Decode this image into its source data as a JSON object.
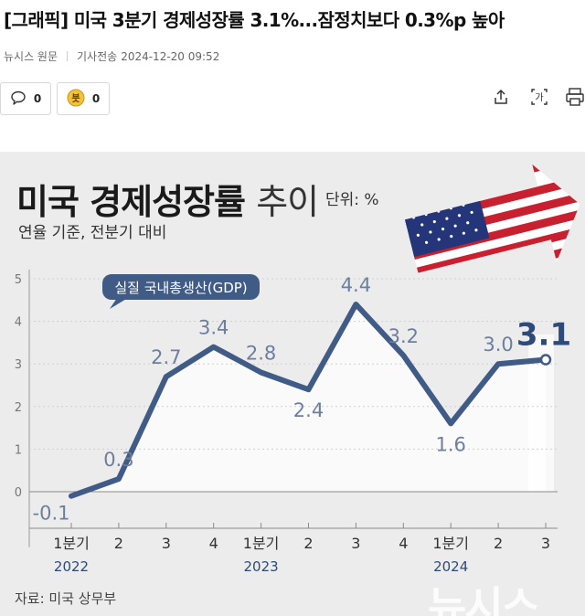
{
  "article": {
    "headline": "[그래픽] 미국 3분기 경제성장률 3.1%...잠정치보다 0.3%p 높아",
    "source": "뉴시스 원문",
    "timestamp_label": "기사전송",
    "timestamp": "2024-12-20 09:52"
  },
  "reactions": {
    "comment_count": "0",
    "reaction_count": "0",
    "reaction_icon_char": "븟"
  },
  "toolbar": {
    "icons": [
      "share-icon",
      "translate-icon",
      "print-icon"
    ],
    "translate_glyph": "가"
  },
  "graphic": {
    "title_main": "미국 경제성장률",
    "title_suffix": "추이",
    "unit": "단위: %",
    "subtitle": "연율 기준, 전분기 대비",
    "source_note": "자료: 미국 상무부",
    "watermark": "뉴시스"
  },
  "chart_data": {
    "type": "line",
    "series": [
      {
        "name": "실질 국내총생산(GDP)",
        "values": [
          -0.1,
          0.3,
          2.7,
          3.4,
          2.8,
          2.4,
          4.4,
          3.2,
          1.6,
          3.0,
          3.1
        ]
      }
    ],
    "data_labels": [
      "-0.1",
      "0.3",
      "2.7",
      "3.4",
      "2.8",
      "2.4",
      "4.4",
      "3.2",
      "1.6",
      "3.0",
      "3.1"
    ],
    "categories": [
      "1분기",
      "2",
      "3",
      "4",
      "1분기",
      "2",
      "3",
      "4",
      "1분기",
      "2",
      "3"
    ],
    "year_labels": [
      {
        "index": 0,
        "label": "2022"
      },
      {
        "index": 4,
        "label": "2023"
      },
      {
        "index": 8,
        "label": "2024"
      }
    ],
    "yticks": [
      "0",
      "1",
      "2",
      "3",
      "4",
      "5"
    ],
    "ylim": [
      -1,
      5.5
    ],
    "colors": {
      "line": "#3f5b86",
      "highlight": "#2c4a7a",
      "label": "#6d7f9c"
    }
  }
}
